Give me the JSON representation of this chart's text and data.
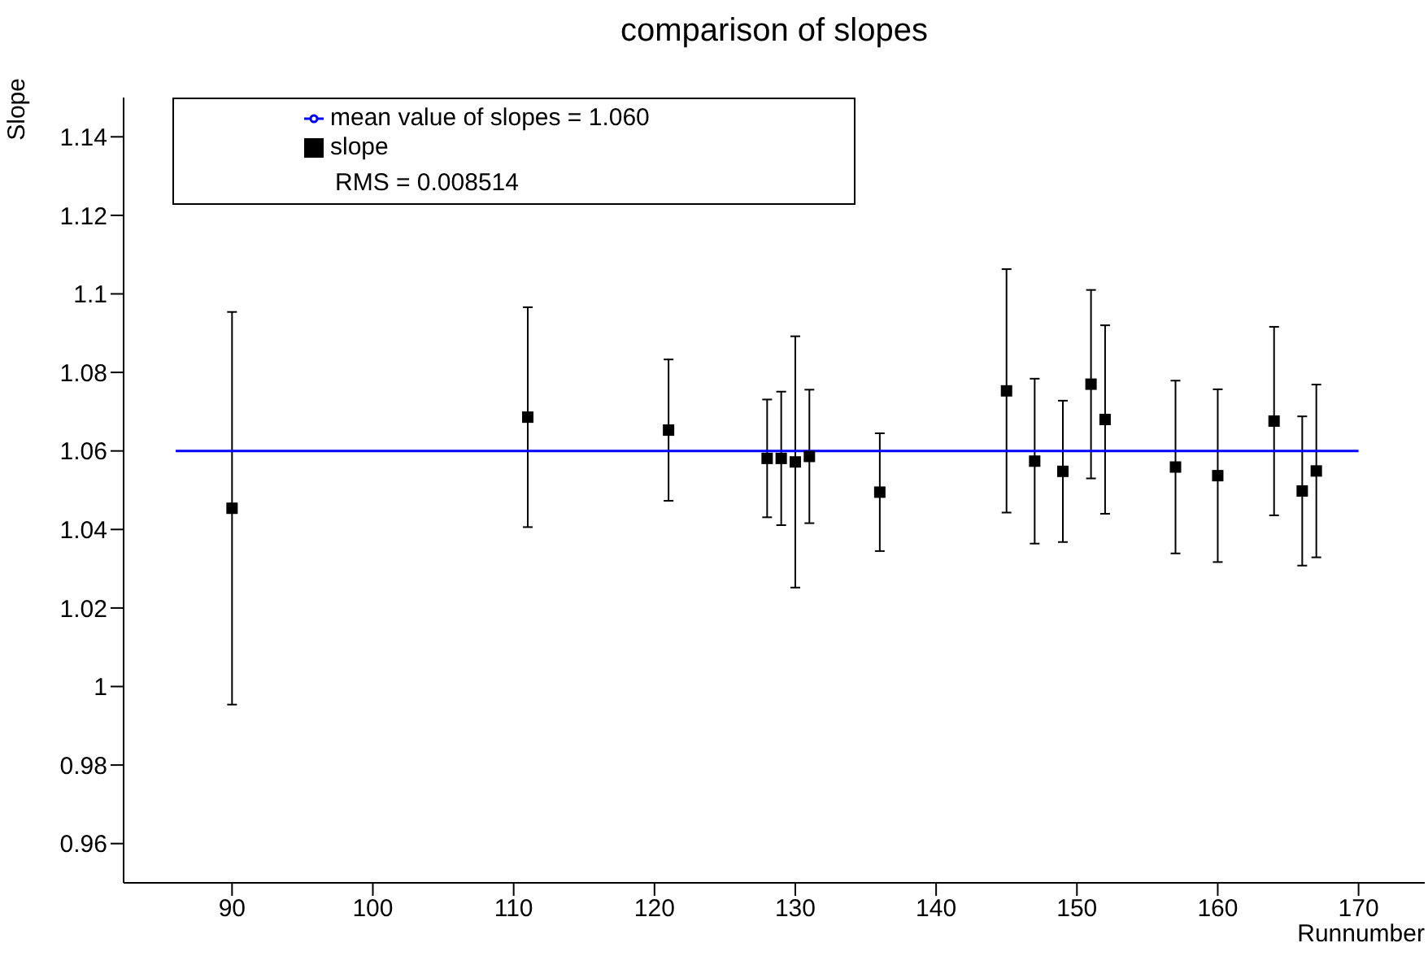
{
  "chart_data": {
    "type": "scatter",
    "title": "comparison of slopes",
    "xlabel": "Runnumber",
    "ylabel": "Slope",
    "xlim": [
      82.3,
      174.7
    ],
    "xticks": [
      90,
      100,
      110,
      120,
      130,
      140,
      150,
      160,
      170
    ],
    "ylim": [
      0.95,
      1.15
    ],
    "yticks": [
      0.96,
      0.98,
      1,
      1.02,
      1.04,
      1.06,
      1.08,
      1.1,
      1.12,
      1.14
    ],
    "legend": "top left",
    "annotations": [
      "RMS = 0.008514"
    ],
    "series": [
      {
        "name": "slope",
        "marker": "square",
        "color": "#000000",
        "x": [
          90,
          111,
          121,
          128,
          129,
          130,
          131,
          136,
          145,
          147,
          149,
          151,
          152,
          157,
          160,
          164,
          166,
          167
        ],
        "values": [
          1.0454,
          1.0686,
          1.0653,
          1.0581,
          1.0581,
          1.0572,
          1.0586,
          1.0495,
          1.0753,
          1.0574,
          1.0548,
          1.077,
          1.068,
          1.0559,
          1.0537,
          1.0676,
          1.0498,
          1.0549
        ],
        "errors": [
          0.05,
          0.028,
          0.018,
          0.015,
          0.017,
          0.032,
          0.017,
          0.015,
          0.031,
          0.021,
          0.018,
          0.024,
          0.024,
          0.022,
          0.022,
          0.024,
          0.019,
          0.022
        ]
      },
      {
        "name": "mean value of slopes = 1.060",
        "type": "line",
        "marker": "none",
        "line_style": "solid",
        "color": "#0000ff",
        "x": [
          86,
          170
        ],
        "values": [
          1.06,
          1.06
        ]
      }
    ]
  }
}
